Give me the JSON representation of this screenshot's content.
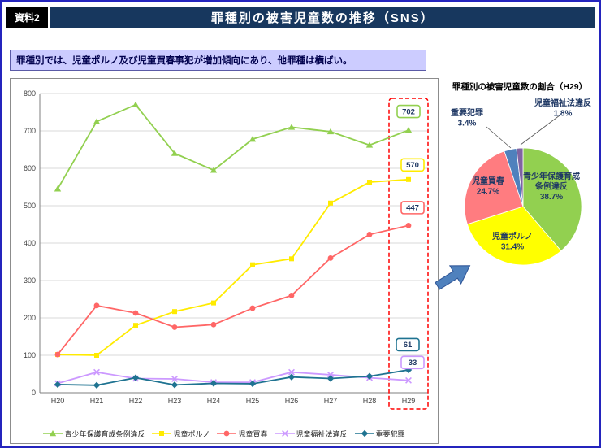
{
  "page": {
    "badge": "資料2",
    "title": "罪種別の被害児童数の推移（SNS）",
    "subtitle": "罪種別では、児童ポルノ及び児童買春事犯が増加傾向にあり、他罪種は横ばい。"
  },
  "colors": {
    "page_border": "#2424bd",
    "header_bg": "#17375e",
    "badge_bg": "#000000",
    "subtitle_bg": "#ccccff",
    "highlight_box": "#ff0000",
    "arrow": "#4f81bd"
  },
  "chart_data": [
    {
      "type": "line",
      "x": [
        "H20",
        "H21",
        "H22",
        "H23",
        "H24",
        "H25",
        "H26",
        "H27",
        "H28",
        "H29"
      ],
      "ylim": [
        0,
        800
      ],
      "ytick": 100,
      "grid": true,
      "legend_position": "bottom",
      "highlight_x": "H29",
      "series": [
        {
          "name": "青少年保護育成条例違反",
          "color": "#92d050",
          "marker": "triangle",
          "values": [
            545,
            725,
            770,
            640,
            595,
            678,
            710,
            698,
            662,
            702
          ]
        },
        {
          "name": "児童ポルノ",
          "color": "#ffeb00",
          "marker": "square",
          "values": [
            102,
            100,
            180,
            217,
            240,
            342,
            358,
            507,
            563,
            570
          ]
        },
        {
          "name": "児童買春",
          "color": "#ff6666",
          "marker": "circle",
          "values": [
            102,
            233,
            213,
            175,
            182,
            226,
            260,
            360,
            423,
            447
          ]
        },
        {
          "name": "児童福祉法違反",
          "color": "#cc99ff",
          "marker": "x",
          "values": [
            25,
            55,
            38,
            37,
            28,
            28,
            55,
            48,
            40,
            33
          ]
        },
        {
          "name": "重要犯罪",
          "color": "#1f7391",
          "marker": "diamond",
          "values": [
            22,
            20,
            40,
            21,
            25,
            24,
            42,
            38,
            44,
            61
          ]
        }
      ]
    },
    {
      "type": "pie",
      "title": "罪種別の被害児童数の割合（H29）",
      "slices": [
        {
          "label": "青少年保護育成条例違反",
          "label_lines": [
            "青少年保護育成",
            "条例違反"
          ],
          "value": 38.7,
          "color": "#92d050"
        },
        {
          "label": "児童ポルノ",
          "value": 31.4,
          "color": "#ffff00"
        },
        {
          "label": "児童買春",
          "value": 24.7,
          "color": "#ff7c80"
        },
        {
          "label": "重要犯罪",
          "value": 3.4,
          "color": "#4f81bd"
        },
        {
          "label": "児童福祉法違反",
          "value": 1.8,
          "color": "#8064a2"
        }
      ]
    }
  ]
}
